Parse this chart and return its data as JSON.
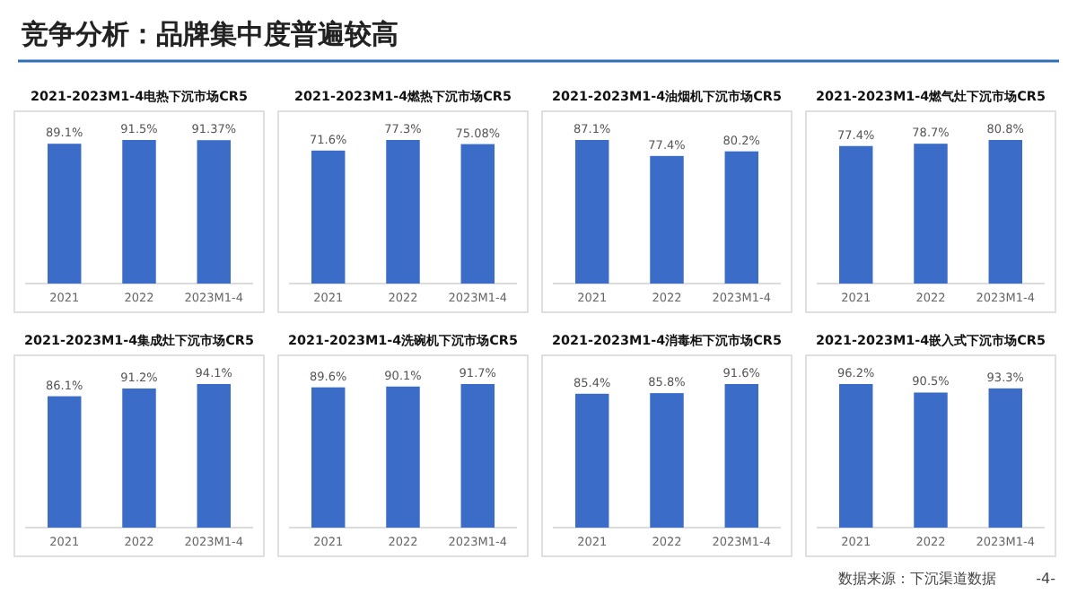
{
  "chart_data": [
    {
      "type": "other",
      "title": "竞争分析：品牌集中度普遍较高",
      "annotations": [
        "数据来源：下沉渠道数据",
        "-4-"
      ]
    },
    {
      "type": "bar",
      "title": "2021-2023M1-4电热下沉市场CR5",
      "categories": [
        "2021",
        "2022",
        "2023M1-4"
      ],
      "values": [
        89.1,
        91.5,
        91.37
      ],
      "value_labels": [
        "89.1%",
        "91.5%",
        "91.37%"
      ],
      "color": "#3b6cc7",
      "tick_labels": "x"
    },
    {
      "type": "bar",
      "title": "2021-2023M1-4燃热下沉市场CR5",
      "categories": [
        "2021",
        "2022",
        "2023M1-4"
      ],
      "values": [
        71.6,
        77.3,
        75.08
      ],
      "value_labels": [
        "71.6%",
        "77.3%",
        "75.08%"
      ],
      "color": "#3b6cc7",
      "tick_labels": "x"
    },
    {
      "type": "bar",
      "title": "2021-2023M1-4油烟机下沉市场CR5",
      "categories": [
        "2021",
        "2022",
        "2023M1-4"
      ],
      "values": [
        87.1,
        77.4,
        80.2
      ],
      "value_labels": [
        "87.1%",
        "77.4%",
        "80.2%"
      ],
      "color": "#3b6cc7",
      "tick_labels": "x"
    },
    {
      "type": "bar",
      "title": "2021-2023M1-4燃气灶下沉市场CR5",
      "categories": [
        "2021",
        "2022",
        "2023M1-4"
      ],
      "values": [
        77.4,
        78.7,
        80.8
      ],
      "value_labels": [
        "77.4%",
        "78.7%",
        "80.8%"
      ],
      "color": "#3b6cc7",
      "tick_labels": "x"
    },
    {
      "type": "bar",
      "title": "2021-2023M1-4集成灶下沉市场CR5",
      "categories": [
        "2021",
        "2022",
        "2023M1-4"
      ],
      "values": [
        86.1,
        91.2,
        94.1
      ],
      "value_labels": [
        "86.1%",
        "91.2%",
        "94.1%"
      ],
      "color": "#3b6cc7",
      "tick_labels": "x"
    },
    {
      "type": "bar",
      "title": "2021-2023M1-4洗碗机下沉市场CR5",
      "categories": [
        "2021",
        "2022",
        "2023M1-4"
      ],
      "values": [
        89.6,
        90.1,
        91.7
      ],
      "value_labels": [
        "89.6%",
        "90.1%",
        "91.7%"
      ],
      "color": "#3b6cc7",
      "tick_labels": "x"
    },
    {
      "type": "bar",
      "title": "2021-2023M1-4消毒柜下沉市场CR5",
      "categories": [
        "2021",
        "2022",
        "2023M1-4"
      ],
      "values": [
        85.4,
        85.8,
        91.6
      ],
      "value_labels": [
        "85.4%",
        "85.8%",
        "91.6%"
      ],
      "color": "#3b6cc7",
      "tick_labels": "x"
    },
    {
      "type": "bar",
      "title": "2021-2023M1-4嵌入式下沉市场CR5",
      "categories": [
        "2021",
        "2022",
        "2023M1-4"
      ],
      "values": [
        96.2,
        90.5,
        93.3
      ],
      "value_labels": [
        "96.2%",
        "90.5%",
        "93.3%"
      ],
      "color": "#3b6cc7",
      "tick_labels": "x"
    }
  ]
}
